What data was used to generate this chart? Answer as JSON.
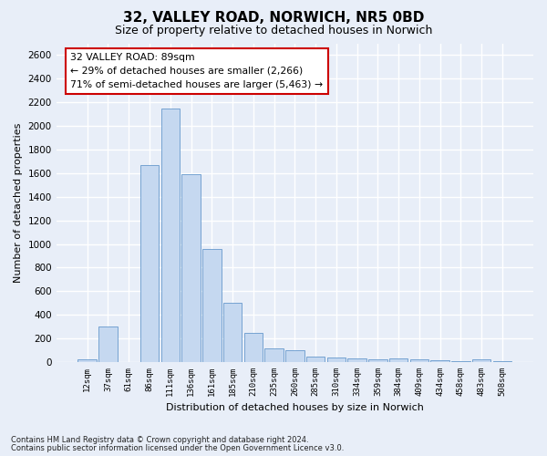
{
  "title1": "32, VALLEY ROAD, NORWICH, NR5 0BD",
  "title2": "Size of property relative to detached houses in Norwich",
  "xlabel": "Distribution of detached houses by size in Norwich",
  "ylabel": "Number of detached properties",
  "categories": [
    "12sqm",
    "37sqm",
    "61sqm",
    "86sqm",
    "111sqm",
    "136sqm",
    "161sqm",
    "185sqm",
    "210sqm",
    "235sqm",
    "260sqm",
    "285sqm",
    "310sqm",
    "334sqm",
    "359sqm",
    "384sqm",
    "409sqm",
    "434sqm",
    "458sqm",
    "483sqm",
    "508sqm"
  ],
  "values": [
    25,
    300,
    0,
    1670,
    2150,
    1590,
    960,
    500,
    250,
    120,
    100,
    50,
    40,
    35,
    20,
    30,
    20,
    15,
    10,
    25,
    5
  ],
  "bar_color": "#c5d8f0",
  "bar_edge_color": "#6699cc",
  "ylim": [
    0,
    2700
  ],
  "yticks": [
    0,
    200,
    400,
    600,
    800,
    1000,
    1200,
    1400,
    1600,
    1800,
    2000,
    2200,
    2400,
    2600
  ],
  "annotation_box_text": "32 VALLEY ROAD: 89sqm\n← 29% of detached houses are smaller (2,266)\n71% of semi-detached houses are larger (5,463) →",
  "annotation_box_color": "#cc0000",
  "footnote1": "Contains HM Land Registry data © Crown copyright and database right 2024.",
  "footnote2": "Contains public sector information licensed under the Open Government Licence v3.0.",
  "background_color": "#e8eef8",
  "plot_bg_color": "#e8eef8",
  "grid_color": "#ffffff",
  "title1_fontsize": 11,
  "title2_fontsize": 9,
  "ylabel_fontsize": 8,
  "xlabel_fontsize": 8
}
